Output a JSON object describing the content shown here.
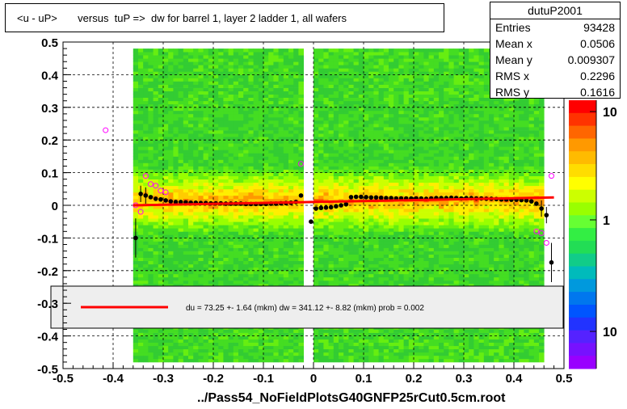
{
  "title": "<u - uP>       versus  tuP =>  dw for barrel 1, layer 2 ladder 1, all wafers",
  "stats": {
    "name": "dutuP2001",
    "rows": [
      {
        "k": "Entries",
        "v": "93428"
      },
      {
        "k": "Mean x",
        "v": "0.0506"
      },
      {
        "k": "Mean y",
        "v": "0.009307"
      },
      {
        "k": "RMS x",
        "v": "0.2296"
      },
      {
        "k": "RMS y",
        "v": "0.1616"
      }
    ]
  },
  "fit_legend": "du =   73.25 +-  1.64 (mkm) dw =  341.12 +-  8.82 (mkm) prob = 0.002",
  "x_title": "../Pass54_NoFieldPlotsG40GNFP25rCut0.5cm.root",
  "colors": {
    "fit_line": "#ff0000",
    "profile": "#000000",
    "markers_open": "#ff00ff"
  },
  "chart_data": {
    "type": "heatmap",
    "xlim": [
      -0.5,
      0.5
    ],
    "ylim": [
      -0.5,
      0.5
    ],
    "x_ticks": [
      "-0.5",
      "-0.4",
      "-0.3",
      "-0.2",
      "-0.1",
      "0",
      "0.1",
      "0.2",
      "0.3",
      "0.4",
      "0.5"
    ],
    "y_ticks": [
      "-0.5",
      "-0.4",
      "-0.3",
      "-0.2",
      "-0.1",
      "0",
      "0.1",
      "0.2",
      "0.3",
      "0.4",
      "0.5"
    ],
    "z_scale": "log",
    "z_tick_labels": [
      "10",
      "1",
      "10"
    ],
    "grid": true,
    "fit_line": {
      "x": [
        -0.36,
        0.48
      ],
      "y": [
        0.0,
        0.024
      ]
    },
    "profile": {
      "x": [
        -0.355,
        -0.345,
        -0.335,
        -0.325,
        -0.315,
        -0.305,
        -0.295,
        -0.285,
        -0.275,
        -0.265,
        -0.255,
        -0.245,
        -0.235,
        -0.225,
        -0.215,
        -0.205,
        -0.195,
        -0.185,
        -0.175,
        -0.165,
        -0.155,
        -0.145,
        -0.135,
        -0.125,
        -0.115,
        -0.105,
        -0.095,
        -0.085,
        -0.075,
        -0.065,
        -0.055,
        -0.045,
        -0.035,
        -0.025,
        -0.005,
        0.005,
        0.015,
        0.025,
        0.035,
        0.045,
        0.055,
        0.065,
        0.075,
        0.085,
        0.095,
        0.105,
        0.115,
        0.125,
        0.135,
        0.145,
        0.155,
        0.165,
        0.175,
        0.185,
        0.195,
        0.205,
        0.215,
        0.225,
        0.235,
        0.245,
        0.255,
        0.265,
        0.275,
        0.285,
        0.295,
        0.305,
        0.315,
        0.325,
        0.335,
        0.345,
        0.355,
        0.365,
        0.375,
        0.385,
        0.395,
        0.405,
        0.415,
        0.425,
        0.435,
        0.445,
        0.455,
        0.465,
        0.475
      ],
      "y": [
        -0.1,
        0.035,
        0.03,
        0.025,
        0.02,
        0.018,
        0.015,
        0.012,
        0.01,
        0.01,
        0.009,
        0.008,
        0.008,
        0.007,
        0.007,
        0.006,
        0.006,
        0.006,
        0.005,
        0.005,
        0.005,
        0.005,
        0.004,
        0.004,
        0.004,
        0.004,
        0.004,
        0.005,
        0.005,
        0.006,
        0.007,
        0.008,
        0.01,
        0.03,
        -0.05,
        -0.01,
        -0.008,
        -0.007,
        -0.006,
        -0.003,
        0.0,
        0.003,
        0.025,
        0.026,
        0.026,
        0.025,
        0.024,
        0.024,
        0.023,
        0.022,
        0.022,
        0.021,
        0.021,
        0.021,
        0.021,
        0.021,
        0.021,
        0.02,
        0.021,
        0.022,
        0.022,
        0.022,
        0.023,
        0.022,
        0.021,
        0.022,
        0.022,
        0.021,
        0.021,
        0.02,
        0.02,
        0.019,
        0.018,
        0.018,
        0.017,
        0.017,
        0.016,
        0.015,
        0.012,
        0.005,
        -0.01,
        -0.03,
        -0.175
      ]
    },
    "open_markers": {
      "x": [
        -0.415,
        -0.355,
        -0.345,
        -0.335,
        -0.325,
        -0.315,
        -0.305,
        -0.295,
        -0.025,
        0.445,
        0.455,
        0.465,
        0.475
      ],
      "y": [
        0.23,
        0.0,
        -0.02,
        0.09,
        0.065,
        0.06,
        0.045,
        0.04,
        0.127,
        -0.08,
        -0.085,
        -0.115,
        0.09
      ]
    }
  }
}
